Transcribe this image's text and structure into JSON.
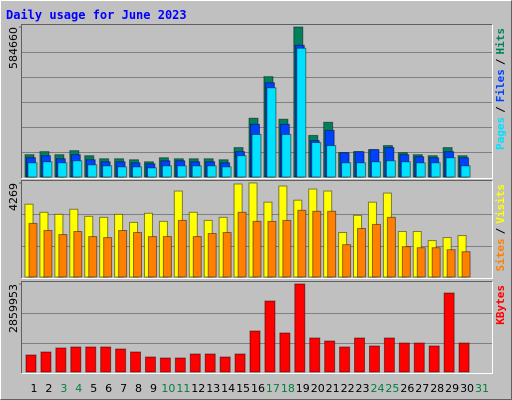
{
  "title": "Daily usage for June 2023",
  "legend_separator": "/",
  "categories": [
    "1",
    "2",
    "3",
    "4",
    "5",
    "6",
    "7",
    "8",
    "9",
    "10",
    "11",
    "12",
    "13",
    "14",
    "15",
    "16",
    "17",
    "18",
    "19",
    "20",
    "21",
    "22",
    "23",
    "24",
    "25",
    "26",
    "27",
    "28",
    "29",
    "30",
    "31"
  ],
  "category_colors": [
    "#000000",
    "#000000",
    "#008040",
    "#008040",
    "#000000",
    "#000000",
    "#000000",
    "#000000",
    "#000000",
    "#008040",
    "#008040",
    "#000000",
    "#000000",
    "#000000",
    "#000000",
    "#000000",
    "#008040",
    "#008040",
    "#000000",
    "#000000",
    "#000000",
    "#000000",
    "#000000",
    "#008040",
    "#008040",
    "#000000",
    "#000000",
    "#000000",
    "#000000",
    "#000000",
    "#008040"
  ],
  "chart_data": [
    {
      "type": "bar",
      "ylim": [
        0,
        584660
      ],
      "yticks": [
        584660
      ],
      "series": [
        {
          "name": "Hits",
          "color": "#00805c",
          "values": [
            86900,
            98800,
            86900,
            102700,
            83000,
            71100,
            71100,
            67200,
            59300,
            75000,
            71100,
            71100,
            71100,
            67200,
            114600,
            229100,
            391100,
            225200,
            584660,
            162000,
            213300,
            94800,
            98800,
            106700,
            122500,
            94800,
            86900,
            83000,
            114600,
            83000,
            null
          ]
        },
        {
          "name": "Files",
          "color": "#0040ff",
          "values": [
            75000,
            83000,
            71100,
            86900,
            67200,
            59300,
            59300,
            55300,
            51400,
            63200,
            63200,
            59300,
            59300,
            55300,
            98800,
            205400,
            367400,
            205400,
            513500,
            142200,
            181700,
            94800,
            98800,
            106700,
            114600,
            86900,
            79000,
            75000,
            98800,
            75000,
            null
          ]
        },
        {
          "name": "Pages",
          "color": "#00e0ff",
          "values": [
            55300,
            59300,
            55300,
            63200,
            47400,
            43500,
            39500,
            39500,
            35600,
            43500,
            43500,
            43500,
            43500,
            39500,
            83000,
            165900,
            347600,
            165900,
            501700,
            134300,
            122500,
            55300,
            55300,
            59300,
            63200,
            59300,
            55300,
            55300,
            75000,
            43500,
            null
          ]
        }
      ]
    },
    {
      "type": "bar",
      "ylim": [
        0,
        4269
      ],
      "yticks": [
        4269
      ],
      "series": [
        {
          "name": "Visits",
          "color": "#ffff00",
          "values": [
            3305,
            2938,
            2846,
            3075,
            2754,
            2708,
            2846,
            2479,
            2892,
            2525,
            3902,
            2938,
            2570,
            2708,
            4223,
            4269,
            3397,
            4131,
            3488,
            3993,
            3902,
            2020,
            2800,
            3397,
            3810,
            2066,
            2066,
            1652,
            1790,
            1882,
            null
          ]
        },
        {
          "name": "Sites",
          "color": "#ff8000",
          "values": [
            2433,
            2111,
            1928,
            2066,
            1836,
            1790,
            2111,
            2020,
            1836,
            1836,
            2570,
            1836,
            1974,
            2020,
            2938,
            2525,
            2525,
            2570,
            3029,
            2984,
            2984,
            1469,
            2203,
            2387,
            2708,
            1377,
            1331,
            1331,
            1239,
            1148,
            null
          ]
        }
      ]
    },
    {
      "type": "bar",
      "ylim": [
        0,
        2859953
      ],
      "yticks": [
        2859953
      ],
      "series": [
        {
          "name": "KBytes",
          "color": "#ff0000",
          "values": [
            552500,
            650000,
            780000,
            812500,
            812500,
            812500,
            747500,
            650000,
            487500,
            455000,
            455000,
            585000,
            585000,
            487500,
            585000,
            1332500,
            2307500,
            1267500,
            2859953,
            1105000,
            1007500,
            812500,
            1105000,
            845000,
            1105000,
            942500,
            942500,
            845000,
            2567500,
            942500,
            null
          ]
        }
      ]
    }
  ]
}
